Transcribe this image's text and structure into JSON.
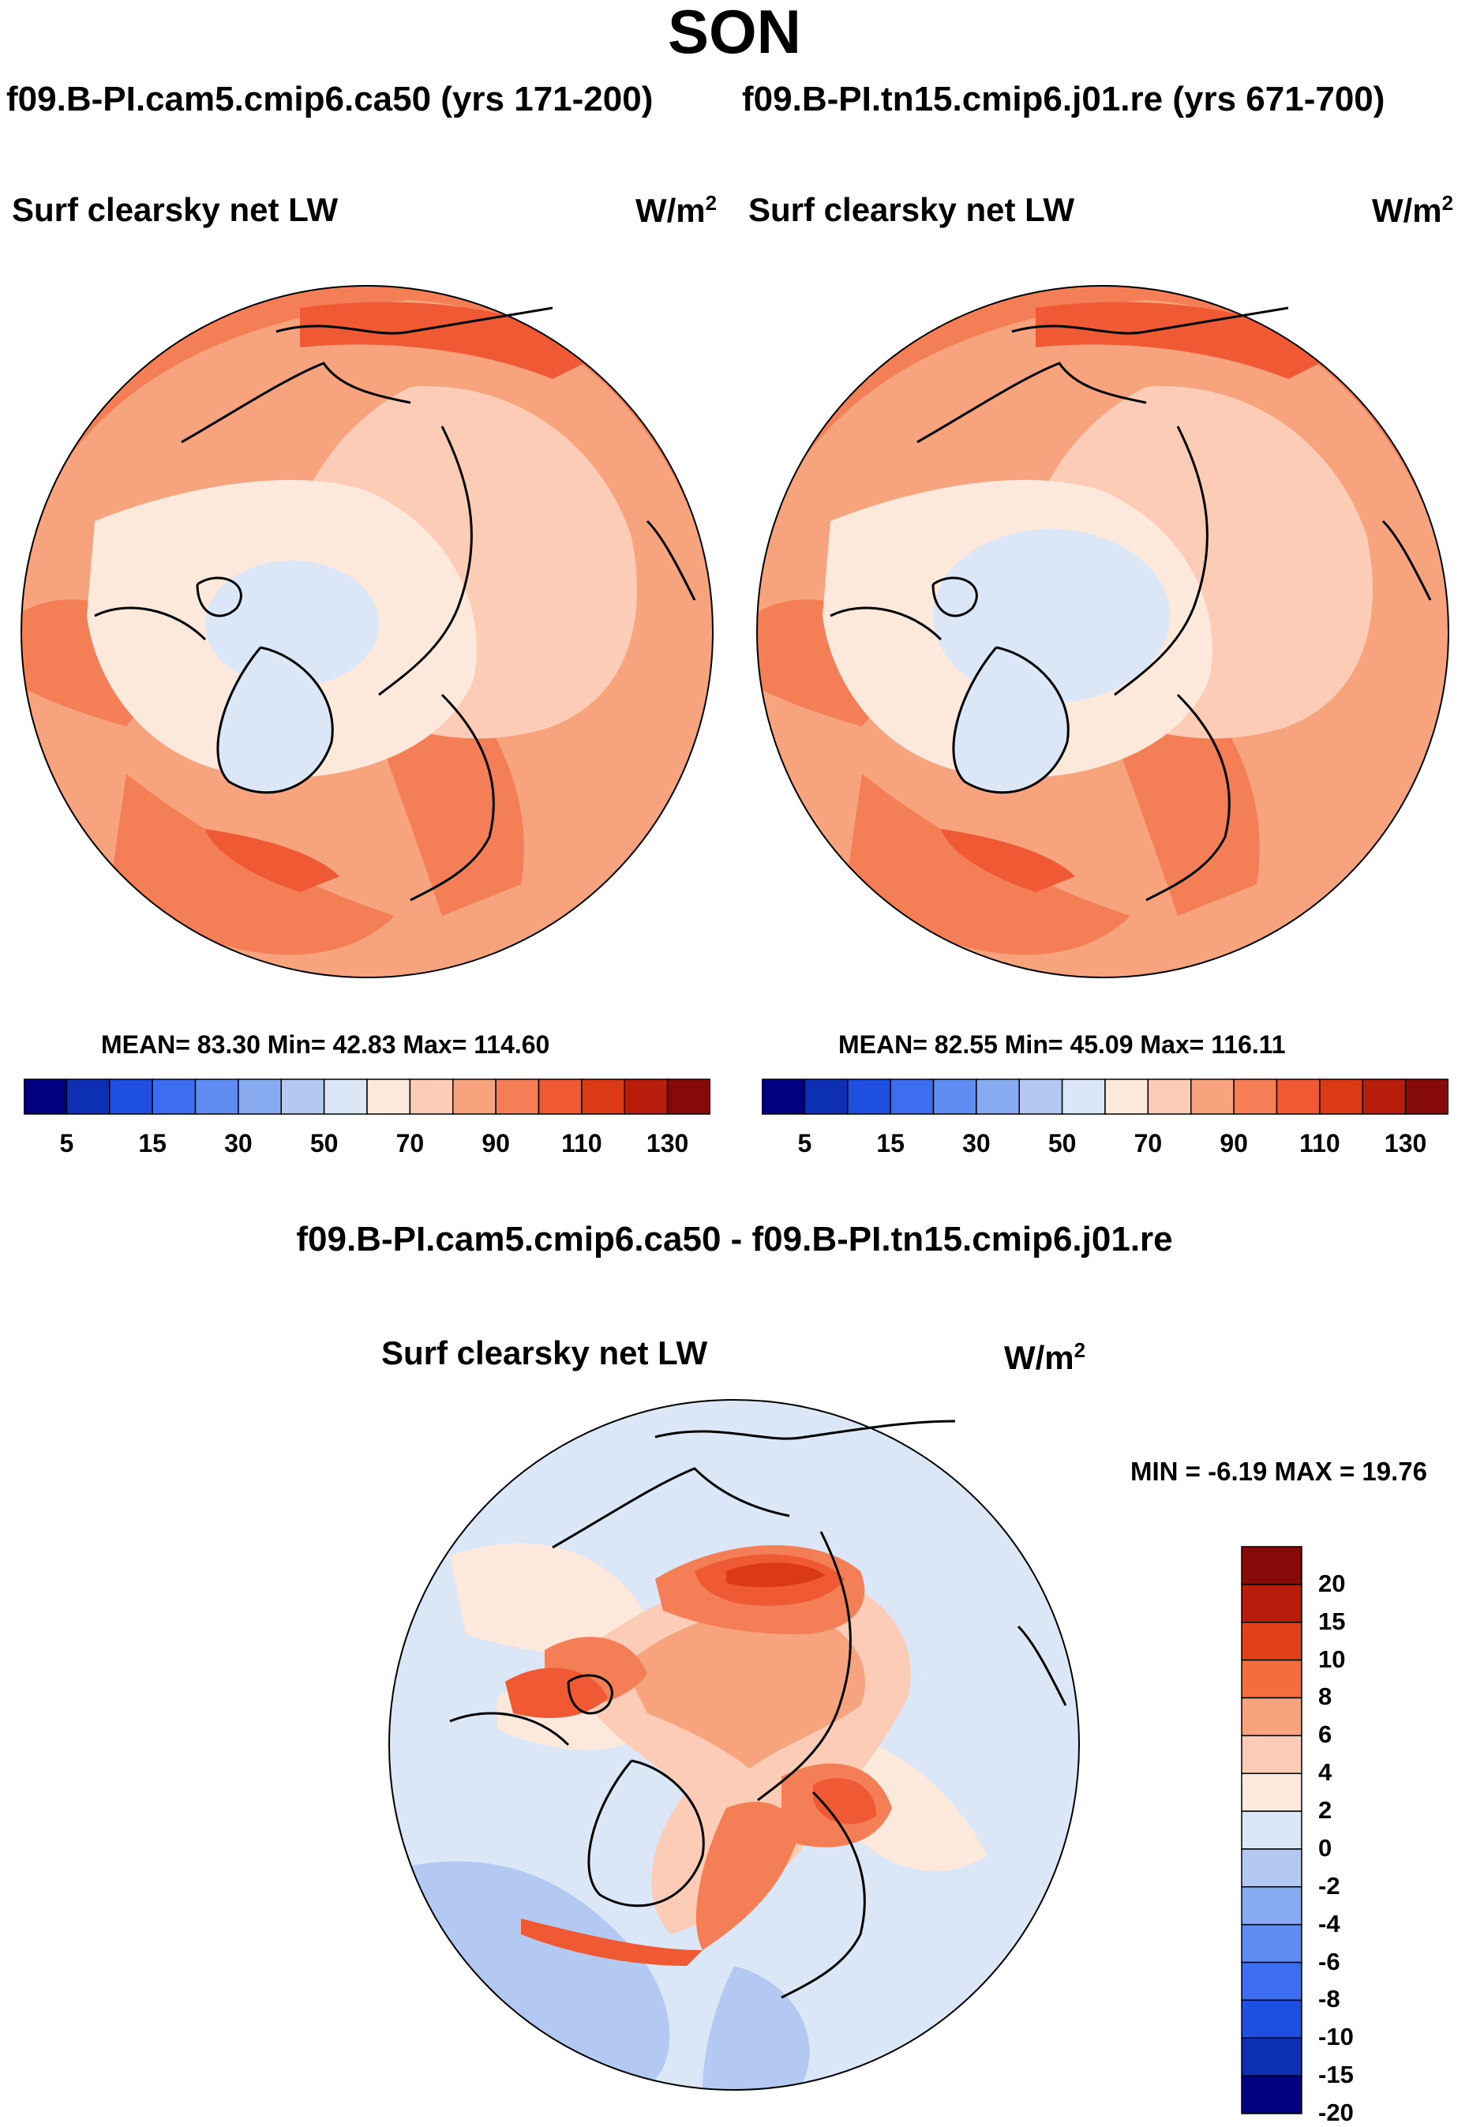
{
  "title": "SON",
  "cases": {
    "case1": "f09.B-PI.cam5.cmip6.ca50 (yrs 171-200)",
    "case2": "f09.B-PI.tn15.cmip6.j01.re (yrs 671-700)",
    "diff": "f09.B-PI.cam5.cmip6.ca50 - f09.B-PI.tn15.cmip6.j01.re"
  },
  "variable": "Surf clearsky net LW",
  "units": {
    "base": "W/m",
    "exp": "2"
  },
  "panel1": {
    "stats": "MEAN=  83.30  Min=  42.83  Max= 114.60",
    "mean": 83.3,
    "min": 42.83,
    "max": 114.6
  },
  "panel2": {
    "stats": "MEAN=  82.55  Min=  45.09  Max= 116.11",
    "mean": 82.55,
    "min": 45.09,
    "max": 116.11
  },
  "diff_panel": {
    "stats": "MIN =  -6.19 MAX =  19.76",
    "min": -6.19,
    "max": 19.76
  },
  "colorbar_main": {
    "colors": [
      "#000080",
      "#0d2fb4",
      "#1f4fe0",
      "#3d6ef2",
      "#5e8cf0",
      "#88aaf0",
      "#b4c9f2",
      "#dbe7f7",
      "#fde9dc",
      "#fdccb6",
      "#f7a47e",
      "#f47e56",
      "#ef5a34",
      "#da3a16",
      "#b81d0c",
      "#870a0a"
    ],
    "tick_labels": [
      "5",
      "15",
      "30",
      "50",
      "70",
      "90",
      "110",
      "130"
    ]
  },
  "colorbar_diff": {
    "colors": [
      "#870a0a",
      "#b81d0c",
      "#e2421a",
      "#f46d3f",
      "#f7a47e",
      "#fdccb6",
      "#fde9dc",
      "#dbe7f7",
      "#b4c9f2",
      "#88aaf0",
      "#5e8cf0",
      "#3d6ef2",
      "#1f4fe0",
      "#0d2fb4",
      "#000080"
    ],
    "tick_labels": [
      "20",
      "15",
      "10",
      "8",
      "6",
      "4",
      "2",
      "0",
      "-2",
      "-4",
      "-6",
      "-8",
      "-10",
      "-15",
      "-20"
    ]
  }
}
